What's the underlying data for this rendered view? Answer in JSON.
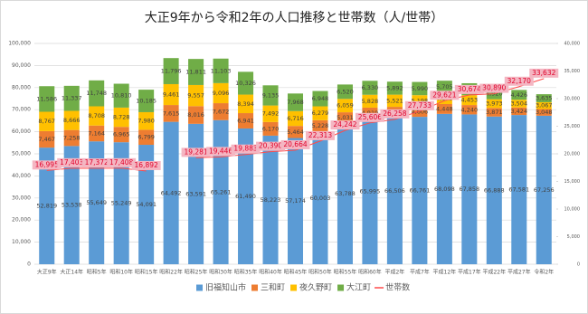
{
  "chart_data": {
    "type": "bar",
    "stacked": true,
    "title": "大正9年から令和2年の人口推移と世帯数（人/世帯）",
    "categories": [
      "大正9年",
      "大正14年",
      "昭和5年",
      "昭和10年",
      "昭和15年",
      "昭和22年",
      "昭和25年",
      "昭和30年",
      "昭和35年",
      "昭和40年",
      "昭和45年",
      "昭和50年",
      "昭和55年",
      "昭和60年",
      "平成2年",
      "平成7年",
      "平成12年",
      "平成17年",
      "平成22年",
      "平成27年",
      "令和2年"
    ],
    "series": [
      {
        "name": "旧福知山市",
        "color": "#5b9bd5",
        "values": [
          52819,
          53538,
          55649,
          55249,
          54091,
          64492,
          63591,
          65261,
          61490,
          58223,
          57174,
          60003,
          63788,
          65995,
          66506,
          66761,
          68098,
          67858,
          66888,
          67581,
          67256
        ],
        "value_labels": [
          "52,819",
          "53,538",
          "55,649",
          "55,249",
          "54,091",
          "64,492",
          "63,591",
          "65,261",
          "61,490",
          "58,223",
          "57,174",
          "60,003",
          "63,788",
          "65,995",
          "66,506",
          "66,761",
          "68,098",
          "67,858",
          "66,888",
          "67,581",
          "67,256"
        ]
      },
      {
        "name": "三和町",
        "color": "#ed7d31",
        "values": [
          7467,
          7258,
          7164,
          6965,
          6799,
          7615,
          8016,
          7672,
          6941,
          6170,
          5464,
          5228,
          5031,
          4919,
          4772,
          4606,
          4448,
          4240,
          3871,
          3424,
          3048
        ],
        "value_labels": [
          "7,467",
          "7,258",
          "7,164",
          "6,965",
          "6,799",
          "7,615",
          "8,016",
          "7,672",
          "6,941",
          "6,170",
          "5,464",
          "5,228",
          "5,031",
          "4,919",
          "4,772",
          "4,606",
          "4,448",
          "4,240",
          "3,871",
          "3,424",
          "3,048"
        ]
      },
      {
        "name": "夜久野町",
        "color": "#ffc000",
        "values": [
          8767,
          8666,
          8708,
          8728,
          7980,
          9461,
          9557,
          9096,
          8394,
          7492,
          6716,
          6279,
          6059,
          5828,
          5521,
          5198,
          4869,
          4453,
          3973,
          3504,
          3067
        ],
        "value_labels": [
          "8,767",
          "8,666",
          "8,708",
          "8,728",
          "7,980",
          "9,461",
          "9,557",
          "9,096",
          "8,394",
          "7,492",
          "6,716",
          "6,279",
          "6,059",
          "5,828",
          "5,521",
          "5,198",
          "4,869",
          "4,453",
          "3,973",
          "3,504",
          "3,067"
        ]
      },
      {
        "name": "大江町",
        "color": "#70ad47",
        "values": [
          11586,
          11337,
          11748,
          10810,
          10185,
          11796,
          11811,
          11103,
          10326,
          9135,
          7968,
          6948,
          6520,
          6330,
          5892,
          5990,
          5705,
          5426,
          4920,
          4426,
          3635
        ],
        "value_labels": [
          "11,586",
          "11,337",
          "11,748",
          "10,810",
          "10,185",
          "11,796",
          "11,811",
          "11,103",
          "10,326",
          "9,135",
          "7,968",
          "6,948",
          "6,520",
          "6,330",
          "5,892",
          "5,990",
          "5,705",
          "5,426",
          "4,920",
          "4,426",
          "3,635"
        ]
      },
      {
        "name": "世帯数",
        "type": "line",
        "axis": "y2",
        "color": "#ff4b4b",
        "values": [
          16995,
          17403,
          17372,
          17408,
          16892,
          null,
          19281,
          19446,
          19883,
          20390,
          20664,
          22313,
          24242,
          25606,
          26258,
          27733,
          29621,
          30674,
          30890,
          32170,
          33632
        ],
        "value_labels": [
          "16,995",
          "17,403",
          "17,372",
          "17,408",
          "16,892",
          null,
          "19,281",
          "19,446",
          "19,883",
          "20,390",
          "20,664",
          "22,313",
          "24,242",
          "25,606",
          "26,258",
          "27,733",
          "29,621",
          "30,674",
          "30,890",
          "32,170",
          "33,632"
        ]
      }
    ],
    "ylim": [
      0,
      100000
    ],
    "yticks": [
      0,
      {
        "value": 10000,
        "label": "10,000"
      },
      {
        "value": 20000,
        "label": "20,000"
      },
      {
        "value": 30000,
        "label": "30,000"
      },
      {
        "value": 40000,
        "label": "40,000"
      },
      {
        "value": 50000,
        "label": "50,000"
      },
      {
        "value": 60000,
        "label": "60,000"
      },
      {
        "value": 70000,
        "label": "70,000"
      },
      {
        "value": 80000,
        "label": "80,000"
      },
      {
        "value": 90000,
        "label": "90,000"
      },
      {
        "value": 100000,
        "label": "100,000"
      }
    ],
    "y2lim": [
      0,
      40000
    ],
    "y2ticks": [
      0,
      {
        "value": 5000,
        "label": "5,000"
      },
      {
        "value": 10000,
        "label": "10,000"
      },
      {
        "value": 15000,
        "label": "15,000"
      },
      {
        "value": 20000,
        "label": "20,000"
      },
      {
        "value": 25000,
        "label": "25,000"
      },
      {
        "value": 30000,
        "label": "30,000"
      },
      {
        "value": 35000,
        "label": "35,000"
      },
      {
        "value": 40000,
        "label": "40,000"
      }
    ],
    "grid": true,
    "legend": "bottom"
  }
}
